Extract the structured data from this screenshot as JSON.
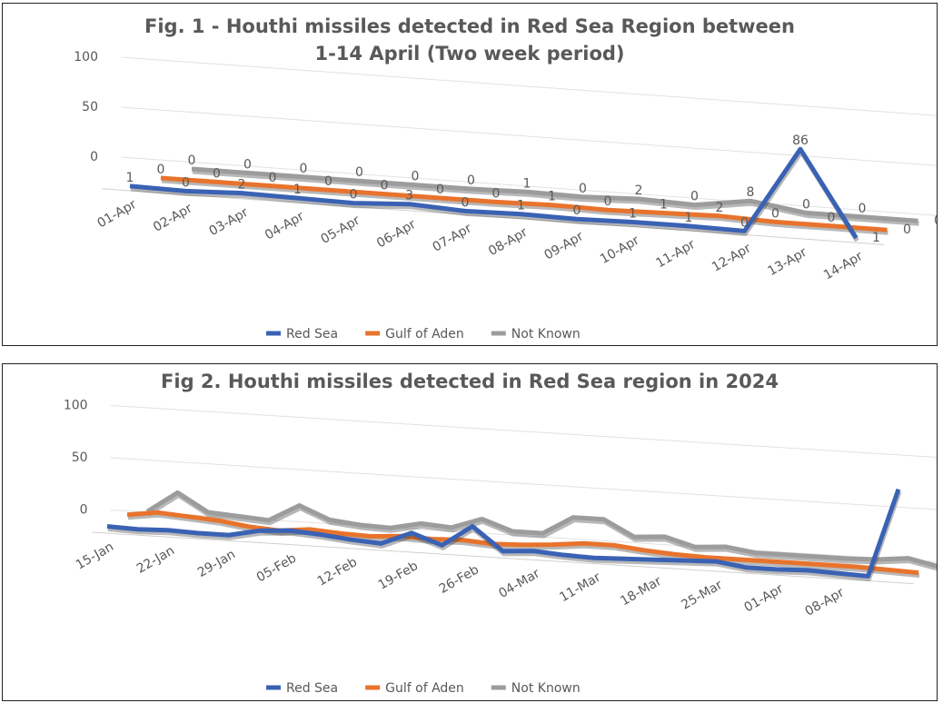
{
  "chart_data": [
    {
      "type": "line3d",
      "title": "Fig. 1 - Houthi missiles detected in Red Sea Region between 1-14 April (Two week period)",
      "categories": [
        "01-Apr",
        "02-Apr",
        "03-Apr",
        "04-Apr",
        "05-Apr",
        "06-Apr",
        "07-Apr",
        "08-Apr",
        "09-Apr",
        "10-Apr",
        "11-Apr",
        "12-Apr",
        "13-Apr",
        "14-Apr"
      ],
      "series": [
        {
          "name": "Red Sea",
          "color": "#3a62b4",
          "values": [
            1,
            0,
            2,
            1,
            0,
            3,
            0,
            1,
            0,
            1,
            1,
            0,
            86,
            1
          ]
        },
        {
          "name": "Gulf of Aden",
          "color": "#e8732c",
          "values": [
            0,
            0,
            0,
            0,
            0,
            0,
            0,
            1,
            0,
            1,
            2,
            0,
            0,
            0
          ]
        },
        {
          "name": "Not Known",
          "color": "#9c9c9c",
          "values": [
            0,
            0,
            0,
            0,
            0,
            0,
            1,
            0,
            2,
            0,
            8,
            0,
            0,
            0
          ]
        }
      ],
      "ylim": [
        0,
        100
      ],
      "yticks": [
        0,
        50,
        100
      ],
      "grid": true,
      "data_labels": true,
      "legend": "bottom"
    },
    {
      "type": "line3d",
      "title": "Fig 2. Houthi missiles detected in Red Sea region in 2024",
      "categories": [
        "15-Jan",
        null,
        "22-Jan",
        null,
        "29-Jan",
        null,
        "05-Feb",
        null,
        "12-Feb",
        null,
        "19-Feb",
        null,
        "26-Feb",
        null,
        "04-Mar",
        null,
        "11-Mar",
        null,
        "18-Mar",
        null,
        "25-Mar",
        null,
        "01-Apr",
        null,
        "08-Apr",
        null,
        null
      ],
      "series": [
        {
          "name": "Red Sea",
          "color": "#3a62b4",
          "values": [
            3,
            2,
            3,
            2,
            2,
            8,
            10,
            8,
            5,
            3,
            15,
            5,
            25,
            3,
            5,
            3,
            2,
            3,
            4,
            5,
            6,
            2,
            2,
            3,
            2,
            1,
            86
          ]
        },
        {
          "name": "Gulf of Aden",
          "color": "#e8732c",
          "values": [
            8,
            12,
            10,
            8,
            4,
            2,
            5,
            3,
            2,
            4,
            3,
            4,
            2,
            3,
            5,
            8,
            8,
            5,
            3,
            2,
            2,
            2,
            2,
            2,
            2,
            1,
            0
          ]
        },
        {
          "name": "Not Known",
          "color": "#9c9c9c",
          "values": [
            5,
            25,
            8,
            6,
            4,
            20,
            8,
            5,
            4,
            10,
            8,
            18,
            8,
            8,
            25,
            25,
            10,
            12,
            4,
            6,
            2,
            2,
            2,
            2,
            3,
            6,
            0
          ]
        }
      ],
      "ylim": [
        0,
        100
      ],
      "yticks": [
        0,
        50,
        100
      ],
      "grid": true,
      "data_labels": false,
      "legend": "bottom"
    }
  ]
}
